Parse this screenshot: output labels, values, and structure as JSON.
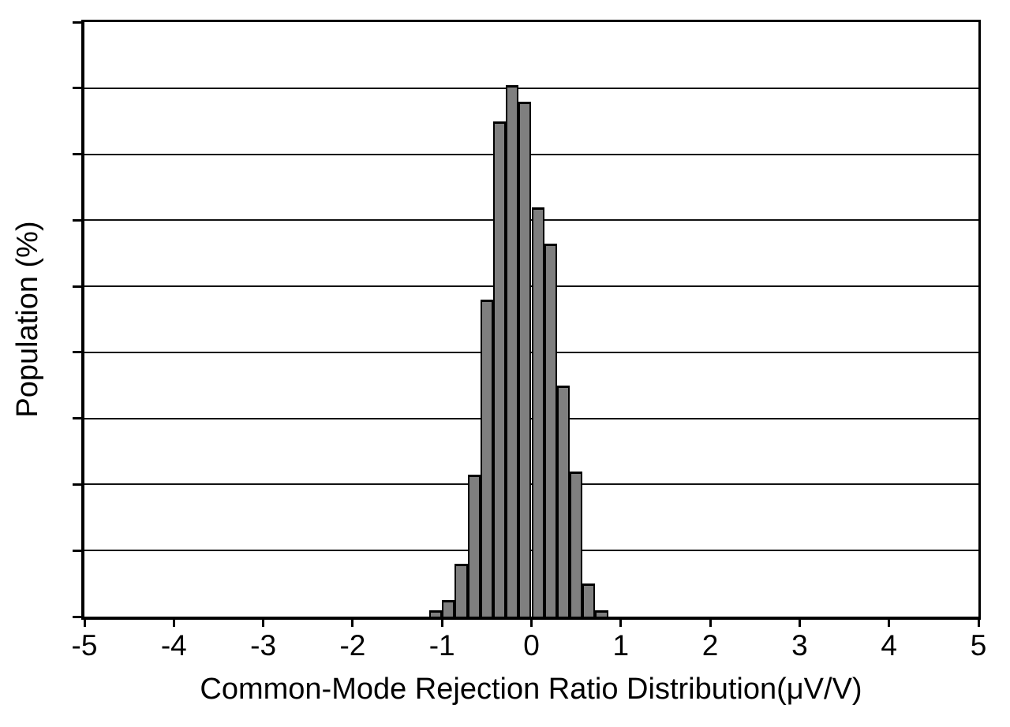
{
  "figure": {
    "background_color": "#ffffff",
    "axis_color": "#000000",
    "grid_color": "#111111"
  },
  "chart_data": {
    "type": "bar",
    "subtype": "histogram",
    "title": "",
    "xlabel": "Common-Mode Rejection Ratio Distribution(μV/V)",
    "ylabel": "Population (%)",
    "xlim": [
      -5,
      5
    ],
    "ylim": [
      0,
      18
    ],
    "x_ticks": [
      -5,
      -4,
      -3,
      -2,
      -1,
      0,
      1,
      2,
      3,
      4,
      5
    ],
    "y_gridline_step": 2,
    "y_tick_count": 10,
    "y_tick_labels_shown": false,
    "grid": "horizontal",
    "legend": "none",
    "bin_width": 0.143,
    "bin_edges": [
      -1.143,
      -1.0,
      -0.857,
      -0.714,
      -0.571,
      -0.429,
      -0.286,
      -0.143,
      0.0,
      0.143,
      0.286,
      0.429,
      0.571,
      0.714,
      0.857
    ],
    "bin_centers": [
      -1.071,
      -0.929,
      -0.786,
      -0.643,
      -0.5,
      -0.357,
      -0.214,
      -0.071,
      0.071,
      0.214,
      0.357,
      0.5,
      0.643,
      0.786
    ],
    "values": [
      0.2,
      0.5,
      1.6,
      4.3,
      9.6,
      15.0,
      16.1,
      15.6,
      12.4,
      11.3,
      7.0,
      4.4,
      1.0,
      0.2
    ],
    "values_unit": "%",
    "bar_color": "#7f7f7f",
    "bar_border_color": "#000000"
  }
}
